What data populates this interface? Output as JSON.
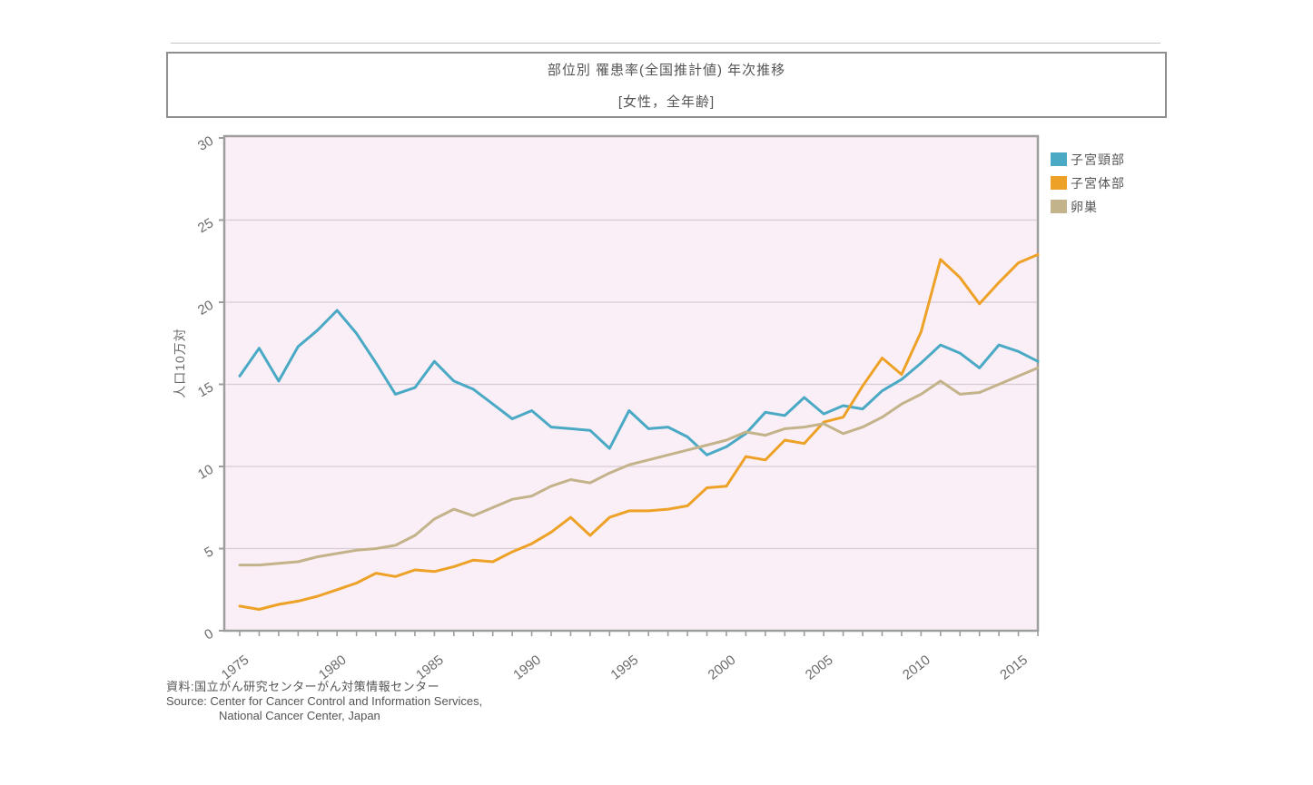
{
  "title_box": {
    "title": "部位別 罹患率(全国推計値) 年次推移",
    "subtitle": "[女性，全年齢]"
  },
  "source": {
    "line1": "資料:国立がん研究センターがん対策情報センター",
    "line2": "Source: Center for Cancer Control and Information Services,",
    "line3": "National Cancer Center, Japan"
  },
  "colors": {
    "plot_background": "#fbeff7",
    "gridline": "#d8ccd4",
    "frame": "#9e9e9e",
    "tick_text": "#6b6b6b",
    "title_text": "#555555"
  },
  "chart_data": {
    "type": "line",
    "title": "部位別 罹患率(全国推計値) 年次推移",
    "subtitle": "[女性，全年齢]",
    "ylabel": "人口10万対",
    "xlabel": "",
    "ylim": [
      0,
      30
    ],
    "y_ticks": [
      0,
      5,
      10,
      15,
      20,
      25,
      30
    ],
    "x_labeled_ticks": [
      1975,
      1980,
      1985,
      1990,
      1995,
      2000,
      2005,
      2010,
      2015
    ],
    "grid": true,
    "legend_position": "right-top",
    "x": [
      1975,
      1976,
      1977,
      1978,
      1979,
      1980,
      1981,
      1982,
      1983,
      1984,
      1985,
      1986,
      1987,
      1988,
      1989,
      1990,
      1991,
      1992,
      1993,
      1994,
      1995,
      1996,
      1997,
      1998,
      1999,
      2000,
      2001,
      2002,
      2003,
      2004,
      2005,
      2006,
      2007,
      2008,
      2009,
      2010,
      2011,
      2012,
      2013,
      2014,
      2015,
      2016
    ],
    "series": [
      {
        "name": "子宮頸部",
        "color": "#4aa9c4",
        "values": [
          15.5,
          17.2,
          15.2,
          17.3,
          18.3,
          19.5,
          18.1,
          16.3,
          14.4,
          14.8,
          16.4,
          15.2,
          14.7,
          13.8,
          12.9,
          13.4,
          12.4,
          12.3,
          12.2,
          11.1,
          13.4,
          12.3,
          12.4,
          11.8,
          10.7,
          11.2,
          12.0,
          13.3,
          13.1,
          14.2,
          13.2,
          13.7,
          13.5,
          14.6,
          15.3,
          16.3,
          17.4,
          16.9,
          16.0,
          17.4,
          17.0,
          16.4
        ]
      },
      {
        "name": "子宮体部",
        "color": "#eda227",
        "values": [
          1.5,
          1.3,
          1.6,
          1.8,
          2.1,
          2.5,
          2.9,
          3.5,
          3.3,
          3.7,
          3.6,
          3.9,
          4.3,
          4.2,
          4.8,
          5.3,
          6.0,
          6.9,
          5.8,
          6.9,
          7.3,
          7.3,
          7.4,
          7.6,
          8.7,
          8.8,
          10.6,
          10.4,
          11.6,
          11.4,
          12.7,
          13.0,
          14.9,
          16.6,
          15.6,
          18.2,
          22.6,
          21.5,
          19.9,
          21.2,
          22.4,
          22.9
        ]
      },
      {
        "name": "卵巣",
        "color": "#c3b38a",
        "values": [
          4.0,
          4.0,
          4.1,
          4.2,
          4.5,
          4.7,
          4.9,
          5.0,
          5.2,
          5.8,
          6.8,
          7.4,
          7.0,
          7.5,
          8.0,
          8.2,
          8.8,
          9.2,
          9.0,
          9.6,
          10.1,
          10.4,
          10.7,
          11.0,
          11.3,
          11.6,
          12.1,
          11.9,
          12.3,
          12.4,
          12.6,
          12.0,
          12.4,
          13.0,
          13.8,
          14.4,
          15.2,
          14.4,
          14.5,
          15.0,
          15.5,
          16.0
        ]
      }
    ]
  }
}
